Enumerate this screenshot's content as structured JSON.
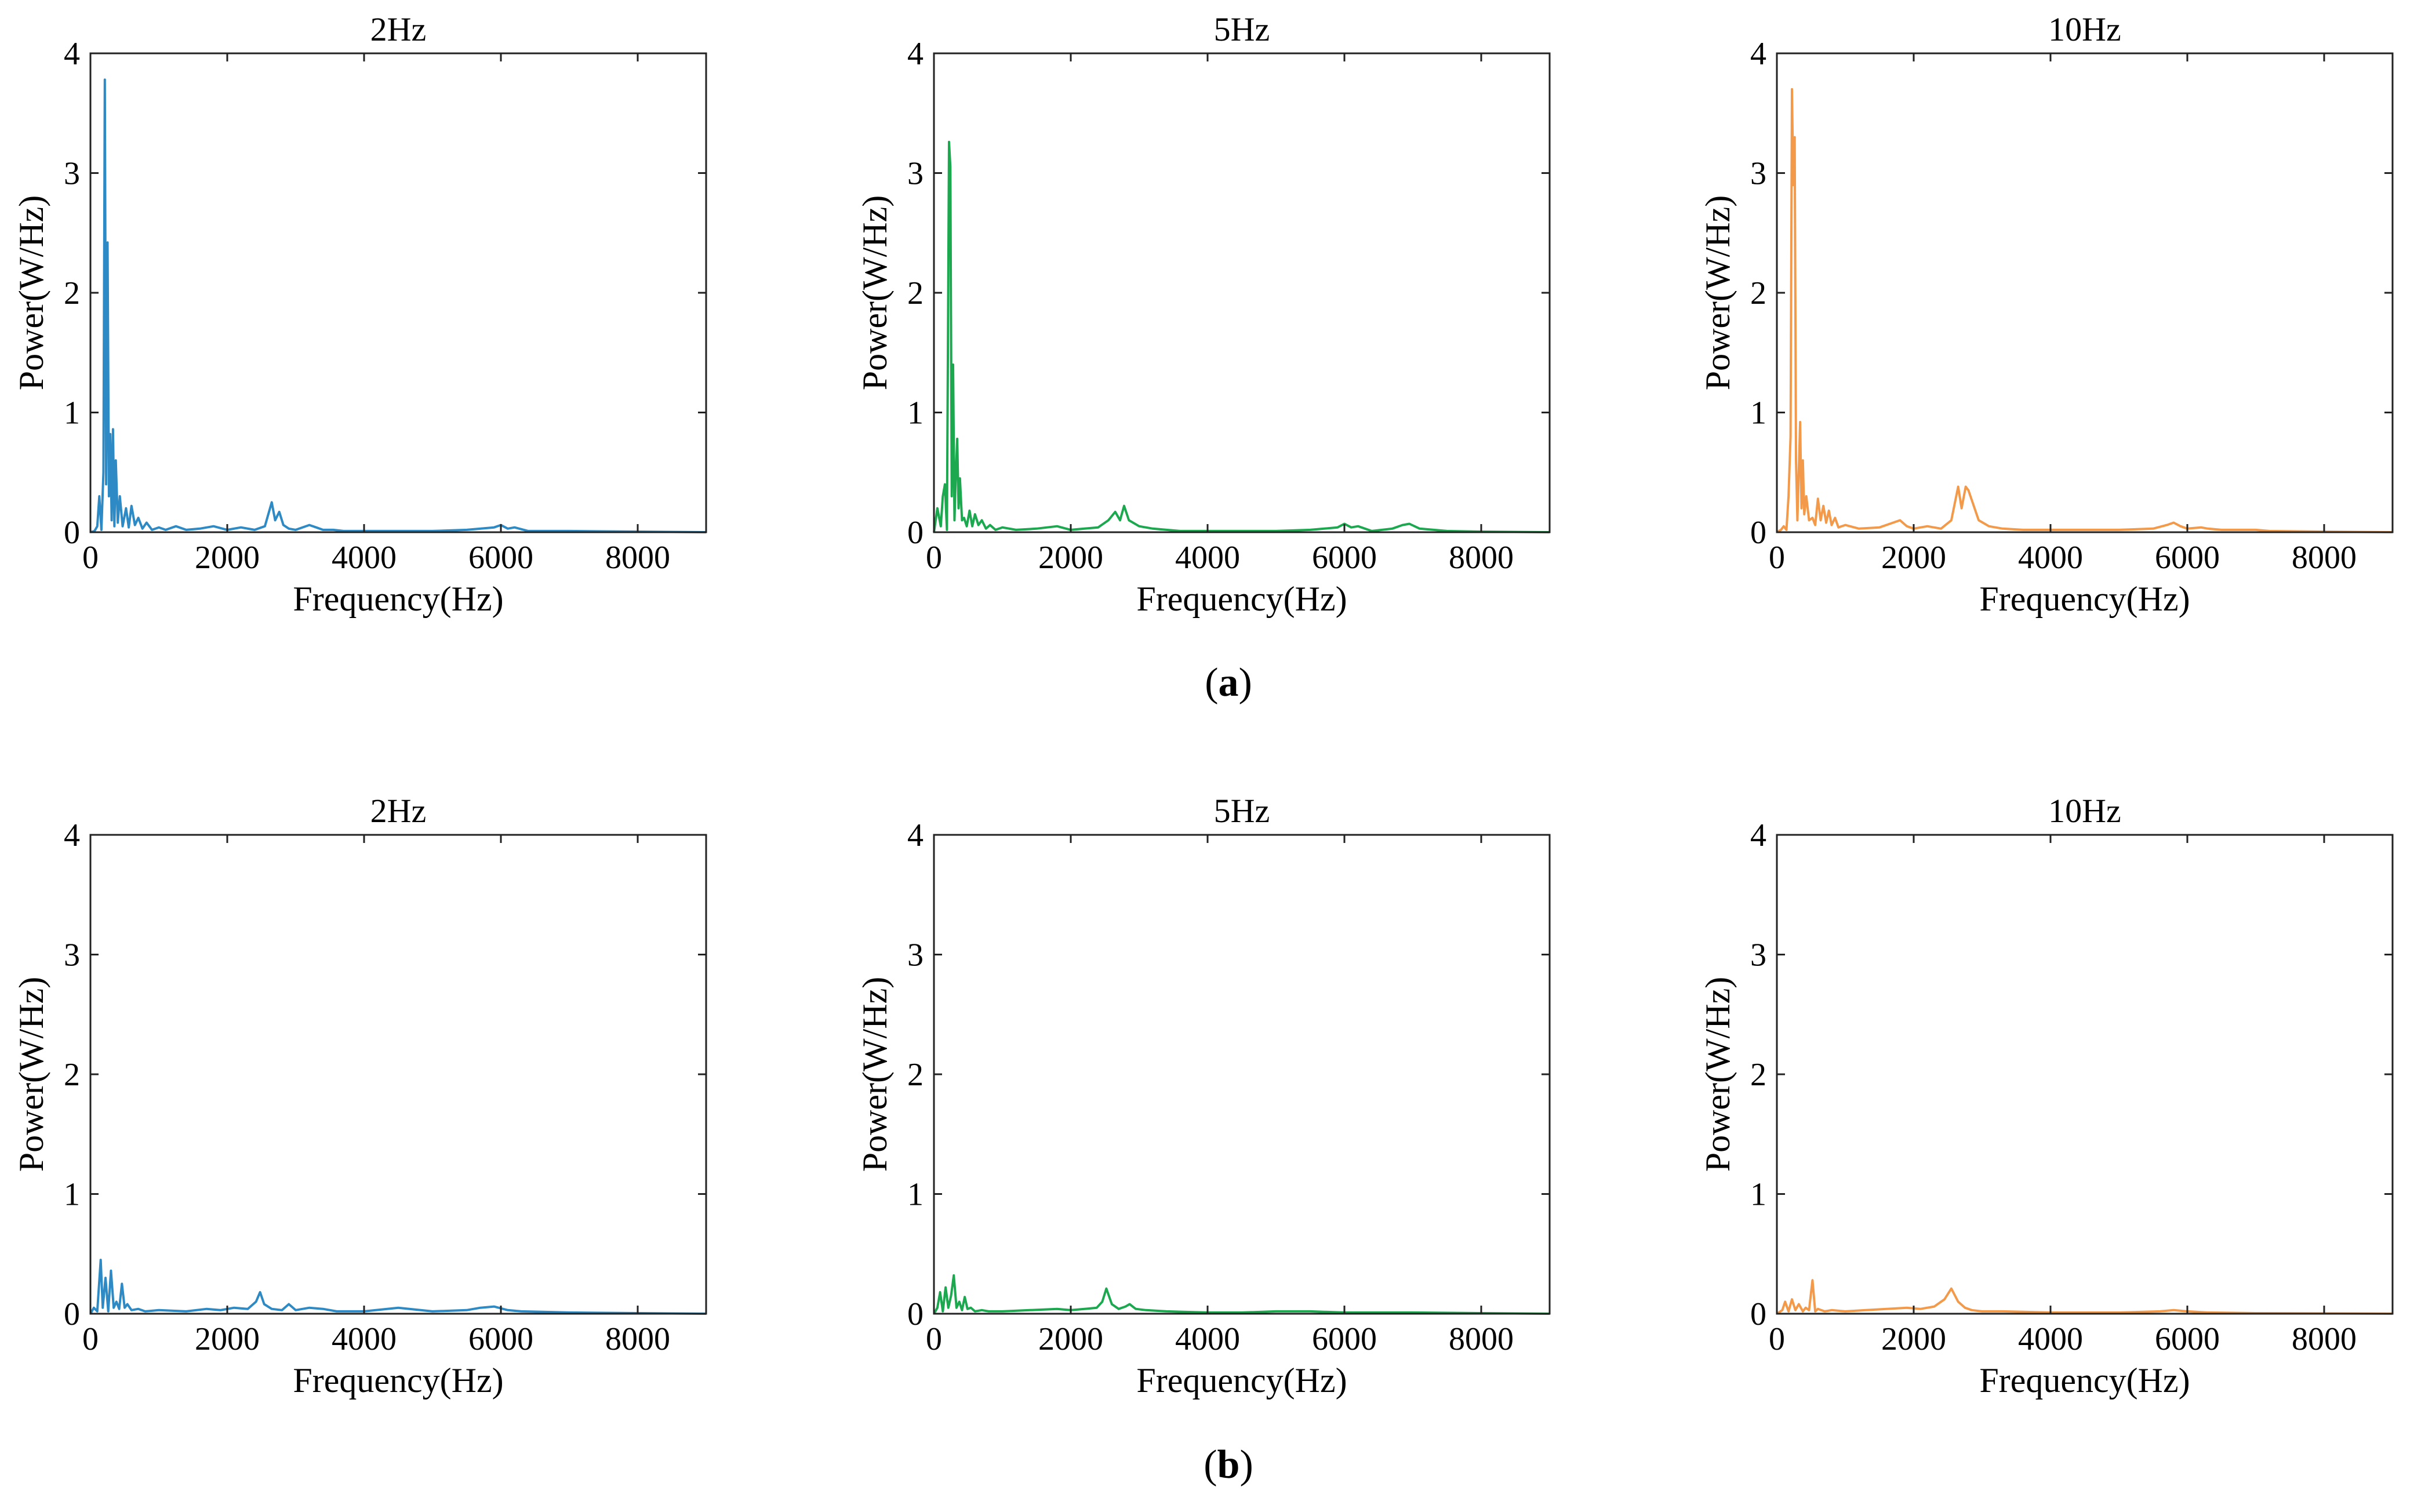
{
  "figure_labels": {
    "a": "a",
    "b": "b"
  },
  "colors": {
    "2Hz": "#2d8ac4",
    "5Hz": "#1ba84f",
    "10Hz": "#f39a4a",
    "axis": "#222222"
  },
  "chart_data": [
    {
      "id": "a-2hz",
      "row": "a",
      "type": "line",
      "title": "2Hz",
      "xlabel": "Frequency(Hz)",
      "ylabel": "Power(W/Hz)",
      "xlim": [
        0,
        9000
      ],
      "ylim": [
        0,
        4
      ],
      "xticks": [
        0,
        2000,
        4000,
        6000,
        8000
      ],
      "yticks": [
        0,
        1,
        2,
        3,
        4
      ],
      "color": "#2d8ac4",
      "x": [
        0,
        60,
        100,
        130,
        160,
        190,
        210,
        230,
        250,
        270,
        290,
        310,
        330,
        350,
        370,
        400,
        430,
        470,
        520,
        560,
        600,
        650,
        700,
        760,
        820,
        900,
        1000,
        1100,
        1250,
        1400,
        1600,
        1800,
        2000,
        2200,
        2400,
        2550,
        2650,
        2700,
        2760,
        2820,
        2900,
        3000,
        3100,
        3200,
        3300,
        3400,
        3550,
        3700,
        4000,
        4500,
        5000,
        5500,
        5900,
        6000,
        6100,
        6200,
        6400,
        7000,
        8000,
        9000
      ],
      "y": [
        0,
        0.01,
        0.05,
        0.3,
        0.02,
        0.5,
        3.78,
        0.4,
        2.42,
        0.3,
        0.82,
        0.1,
        0.86,
        0.05,
        0.6,
        0.08,
        0.3,
        0.05,
        0.2,
        0.04,
        0.22,
        0.06,
        0.12,
        0.03,
        0.08,
        0.02,
        0.04,
        0.02,
        0.05,
        0.02,
        0.03,
        0.05,
        0.02,
        0.04,
        0.02,
        0.05,
        0.25,
        0.1,
        0.17,
        0.06,
        0.03,
        0.02,
        0.04,
        0.06,
        0.04,
        0.02,
        0.02,
        0.01,
        0.01,
        0.01,
        0.01,
        0.02,
        0.04,
        0.06,
        0.03,
        0.04,
        0.01,
        0.01,
        0.005,
        0
      ]
    },
    {
      "id": "a-5hz",
      "row": "a",
      "type": "line",
      "title": "5Hz",
      "xlabel": "Frequency(Hz)",
      "ylabel": "Power(W/Hz)",
      "xlim": [
        0,
        9000
      ],
      "ylim": [
        0,
        4
      ],
      "xticks": [
        0,
        2000,
        4000,
        6000,
        8000
      ],
      "yticks": [
        0,
        1,
        2,
        3,
        4
      ],
      "color": "#1ba84f",
      "x": [
        0,
        50,
        100,
        130,
        160,
        190,
        220,
        240,
        260,
        280,
        300,
        320,
        340,
        360,
        380,
        410,
        440,
        480,
        520,
        560,
        600,
        650,
        700,
        760,
        820,
        900,
        1000,
        1200,
        1500,
        1800,
        2000,
        2200,
        2400,
        2550,
        2650,
        2720,
        2780,
        2850,
        3000,
        3200,
        3400,
        3600,
        4000,
        4500,
        5000,
        5500,
        5900,
        6000,
        6100,
        6200,
        6400,
        6700,
        6850,
        6950,
        7100,
        7500,
        8000,
        9000
      ],
      "y": [
        0,
        0.2,
        0.05,
        0.3,
        0.4,
        0.02,
        3.26,
        3.05,
        0.3,
        1.4,
        0.1,
        0.5,
        0.78,
        0.2,
        0.45,
        0.1,
        0.12,
        0.05,
        0.18,
        0.05,
        0.15,
        0.06,
        0.1,
        0.03,
        0.06,
        0.02,
        0.04,
        0.02,
        0.03,
        0.05,
        0.02,
        0.03,
        0.04,
        0.1,
        0.17,
        0.1,
        0.22,
        0.1,
        0.05,
        0.03,
        0.02,
        0.01,
        0.01,
        0.01,
        0.01,
        0.02,
        0.04,
        0.07,
        0.04,
        0.05,
        0.01,
        0.03,
        0.06,
        0.07,
        0.03,
        0.01,
        0.005,
        0
      ]
    },
    {
      "id": "a-10hz",
      "row": "a",
      "type": "line",
      "title": "10Hz",
      "xlabel": "Frequency(Hz)",
      "ylabel": "Power(W/Hz)",
      "xlim": [
        0,
        9000
      ],
      "ylim": [
        0,
        4
      ],
      "xticks": [
        0,
        2000,
        4000,
        6000,
        8000
      ],
      "yticks": [
        0,
        1,
        2,
        3,
        4
      ],
      "color": "#f39a4a",
      "x": [
        0,
        60,
        100,
        140,
        170,
        200,
        220,
        240,
        260,
        280,
        300,
        320,
        340,
        360,
        380,
        400,
        430,
        470,
        520,
        560,
        600,
        640,
        680,
        720,
        760,
        800,
        850,
        900,
        1000,
        1200,
        1500,
        1700,
        1800,
        1900,
        2000,
        2200,
        2400,
        2550,
        2650,
        2700,
        2760,
        2800,
        2860,
        2950,
        3100,
        3300,
        3600,
        4000,
        4500,
        5000,
        5500,
        5700,
        5800,
        5900,
        6000,
        6200,
        6300,
        6500,
        6900,
        7000,
        7200,
        8000,
        9000
      ],
      "y": [
        0,
        0.02,
        0.05,
        0.02,
        0.3,
        0.8,
        3.7,
        2.9,
        3.3,
        0.6,
        0.1,
        0.5,
        0.92,
        0.2,
        0.6,
        0.15,
        0.3,
        0.1,
        0.12,
        0.06,
        0.28,
        0.1,
        0.22,
        0.08,
        0.18,
        0.06,
        0.12,
        0.04,
        0.06,
        0.03,
        0.04,
        0.08,
        0.1,
        0.05,
        0.03,
        0.05,
        0.03,
        0.1,
        0.38,
        0.2,
        0.38,
        0.35,
        0.25,
        0.1,
        0.05,
        0.03,
        0.02,
        0.02,
        0.02,
        0.02,
        0.03,
        0.06,
        0.08,
        0.05,
        0.03,
        0.04,
        0.03,
        0.02,
        0.02,
        0.02,
        0.01,
        0.005,
        0
      ]
    },
    {
      "id": "b-2hz",
      "row": "b",
      "type": "line",
      "title": "2Hz",
      "xlabel": "Frequency(Hz)",
      "ylabel": "Power(W/Hz)",
      "xlim": [
        0,
        9000
      ],
      "ylim": [
        0,
        4
      ],
      "xticks": [
        0,
        2000,
        4000,
        6000,
        8000
      ],
      "yticks": [
        0,
        1,
        2,
        3,
        4
      ],
      "color": "#2d8ac4",
      "x": [
        0,
        50,
        100,
        150,
        180,
        220,
        260,
        300,
        340,
        380,
        420,
        460,
        500,
        540,
        600,
        700,
        800,
        1000,
        1400,
        1700,
        1900,
        2100,
        2300,
        2420,
        2480,
        2540,
        2650,
        2800,
        2900,
        3000,
        3200,
        3400,
        3600,
        4000,
        4500,
        5000,
        5500,
        5700,
        5900,
        6100,
        6300,
        7000,
        8000,
        9000
      ],
      "y": [
        0,
        0.05,
        0.02,
        0.45,
        0.05,
        0.3,
        0.02,
        0.36,
        0.05,
        0.1,
        0.04,
        0.25,
        0.05,
        0.08,
        0.03,
        0.04,
        0.02,
        0.03,
        0.02,
        0.04,
        0.03,
        0.05,
        0.04,
        0.1,
        0.18,
        0.08,
        0.04,
        0.03,
        0.08,
        0.03,
        0.05,
        0.04,
        0.02,
        0.02,
        0.05,
        0.02,
        0.03,
        0.05,
        0.06,
        0.03,
        0.02,
        0.01,
        0.005,
        0
      ]
    },
    {
      "id": "b-5hz",
      "row": "b",
      "type": "line",
      "title": "5Hz",
      "xlabel": "Frequency(Hz)",
      "ylabel": "Power(W/Hz)",
      "xlim": [
        0,
        9000
      ],
      "ylim": [
        0,
        4
      ],
      "xticks": [
        0,
        2000,
        4000,
        6000,
        8000
      ],
      "yticks": [
        0,
        1,
        2,
        3,
        4
      ],
      "color": "#1ba84f",
      "x": [
        0,
        50,
        90,
        130,
        170,
        210,
        250,
        290,
        330,
        370,
        410,
        450,
        490,
        540,
        600,
        700,
        800,
        1000,
        1400,
        1800,
        2000,
        2200,
        2380,
        2460,
        2520,
        2600,
        2700,
        2800,
        2860,
        2950,
        3100,
        3400,
        4000,
        4500,
        5000,
        5500,
        6000,
        7000,
        8000,
        9000
      ],
      "y": [
        0,
        0.05,
        0.18,
        0.02,
        0.22,
        0.05,
        0.15,
        0.32,
        0.05,
        0.1,
        0.03,
        0.14,
        0.04,
        0.05,
        0.02,
        0.03,
        0.02,
        0.02,
        0.03,
        0.04,
        0.03,
        0.04,
        0.05,
        0.1,
        0.21,
        0.08,
        0.04,
        0.06,
        0.08,
        0.04,
        0.03,
        0.02,
        0.01,
        0.01,
        0.02,
        0.02,
        0.01,
        0.01,
        0.005,
        0
      ]
    },
    {
      "id": "b-10hz",
      "row": "b",
      "type": "line",
      "title": "10Hz",
      "xlabel": "Frequency(Hz)",
      "ylabel": "Power(W/Hz)",
      "xlim": [
        0,
        9000
      ],
      "ylim": [
        0,
        4
      ],
      "xticks": [
        0,
        2000,
        4000,
        6000,
        8000
      ],
      "yticks": [
        0,
        1,
        2,
        3,
        4
      ],
      "color": "#f39a4a",
      "x": [
        0,
        80,
        120,
        170,
        220,
        270,
        320,
        380,
        420,
        470,
        520,
        560,
        600,
        700,
        800,
        1000,
        1300,
        1600,
        1900,
        2100,
        2300,
        2450,
        2550,
        2650,
        2750,
        2850,
        3000,
        3300,
        4000,
        5000,
        5600,
        5800,
        6000,
        6300,
        7000,
        8000,
        9000
      ],
      "y": [
        0,
        0.03,
        0.1,
        0.02,
        0.12,
        0.03,
        0.08,
        0.02,
        0.05,
        0.03,
        0.28,
        0.02,
        0.04,
        0.02,
        0.03,
        0.02,
        0.03,
        0.04,
        0.05,
        0.04,
        0.06,
        0.12,
        0.21,
        0.1,
        0.05,
        0.03,
        0.02,
        0.02,
        0.01,
        0.01,
        0.02,
        0.03,
        0.02,
        0.01,
        0.005,
        0.003,
        0
      ]
    }
  ]
}
